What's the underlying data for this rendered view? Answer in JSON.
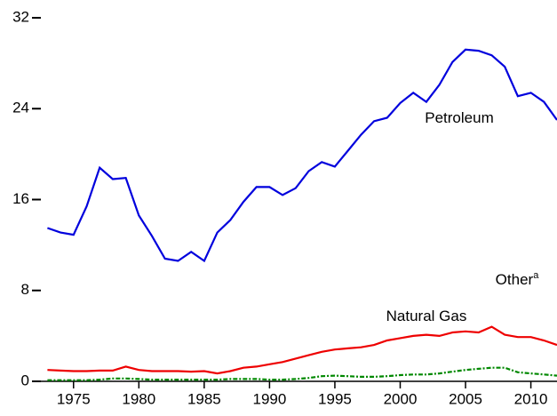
{
  "chart_data": {
    "type": "line",
    "x": [
      1973,
      1974,
      1975,
      1976,
      1977,
      1978,
      1979,
      1980,
      1981,
      1982,
      1983,
      1984,
      1985,
      1986,
      1987,
      1988,
      1989,
      1990,
      1991,
      1992,
      1993,
      1994,
      1995,
      1996,
      1997,
      1998,
      1999,
      2000,
      2001,
      2002,
      2003,
      2004,
      2005,
      2006,
      2007,
      2008,
      2009,
      2010,
      2011,
      2012
    ],
    "series": [
      {
        "name": "Petroleum",
        "color": "#0000dd",
        "dash": false,
        "values": [
          13.5,
          13.1,
          12.9,
          15.4,
          18.8,
          17.8,
          17.9,
          14.6,
          12.8,
          10.8,
          10.6,
          11.4,
          10.6,
          13.1,
          14.2,
          15.8,
          17.1,
          17.1,
          16.4,
          17.0,
          18.5,
          19.3,
          18.9,
          20.3,
          21.7,
          22.9,
          23.2,
          24.5,
          25.4,
          24.6,
          26.1,
          28.1,
          29.2,
          29.1,
          28.7,
          27.7,
          25.1,
          25.4,
          24.6,
          23.0
        ]
      },
      {
        "name": "Natural Gas",
        "color": "#ee0000",
        "dash": false,
        "values": [
          1.0,
          0.95,
          0.9,
          0.9,
          0.95,
          0.95,
          1.3,
          1.0,
          0.9,
          0.9,
          0.9,
          0.85,
          0.9,
          0.7,
          0.9,
          1.2,
          1.3,
          1.5,
          1.7,
          2.0,
          2.3,
          2.6,
          2.8,
          2.9,
          3.0,
          3.2,
          3.6,
          3.8,
          4.0,
          4.1,
          4.0,
          4.3,
          4.4,
          4.3,
          4.8,
          4.1,
          3.9,
          3.9,
          3.6,
          3.2
        ]
      },
      {
        "name": "Other",
        "footnote_mark": "a",
        "color": "#008800",
        "dash": true,
        "values": [
          0.1,
          0.1,
          0.1,
          0.1,
          0.15,
          0.25,
          0.25,
          0.2,
          0.15,
          0.15,
          0.15,
          0.15,
          0.15,
          0.15,
          0.2,
          0.2,
          0.2,
          0.15,
          0.15,
          0.2,
          0.3,
          0.45,
          0.5,
          0.45,
          0.4,
          0.4,
          0.45,
          0.55,
          0.6,
          0.6,
          0.7,
          0.85,
          1.0,
          1.1,
          1.2,
          1.2,
          0.8,
          0.7,
          0.6,
          0.5
        ]
      }
    ],
    "xlim": [
      1972.5,
      2012
    ],
    "xticks": [
      1975,
      1980,
      1985,
      1990,
      1995,
      2000,
      2005,
      2010
    ],
    "ylim": [
      0,
      32
    ],
    "yticks": [
      0,
      8,
      16,
      24,
      32
    ]
  }
}
